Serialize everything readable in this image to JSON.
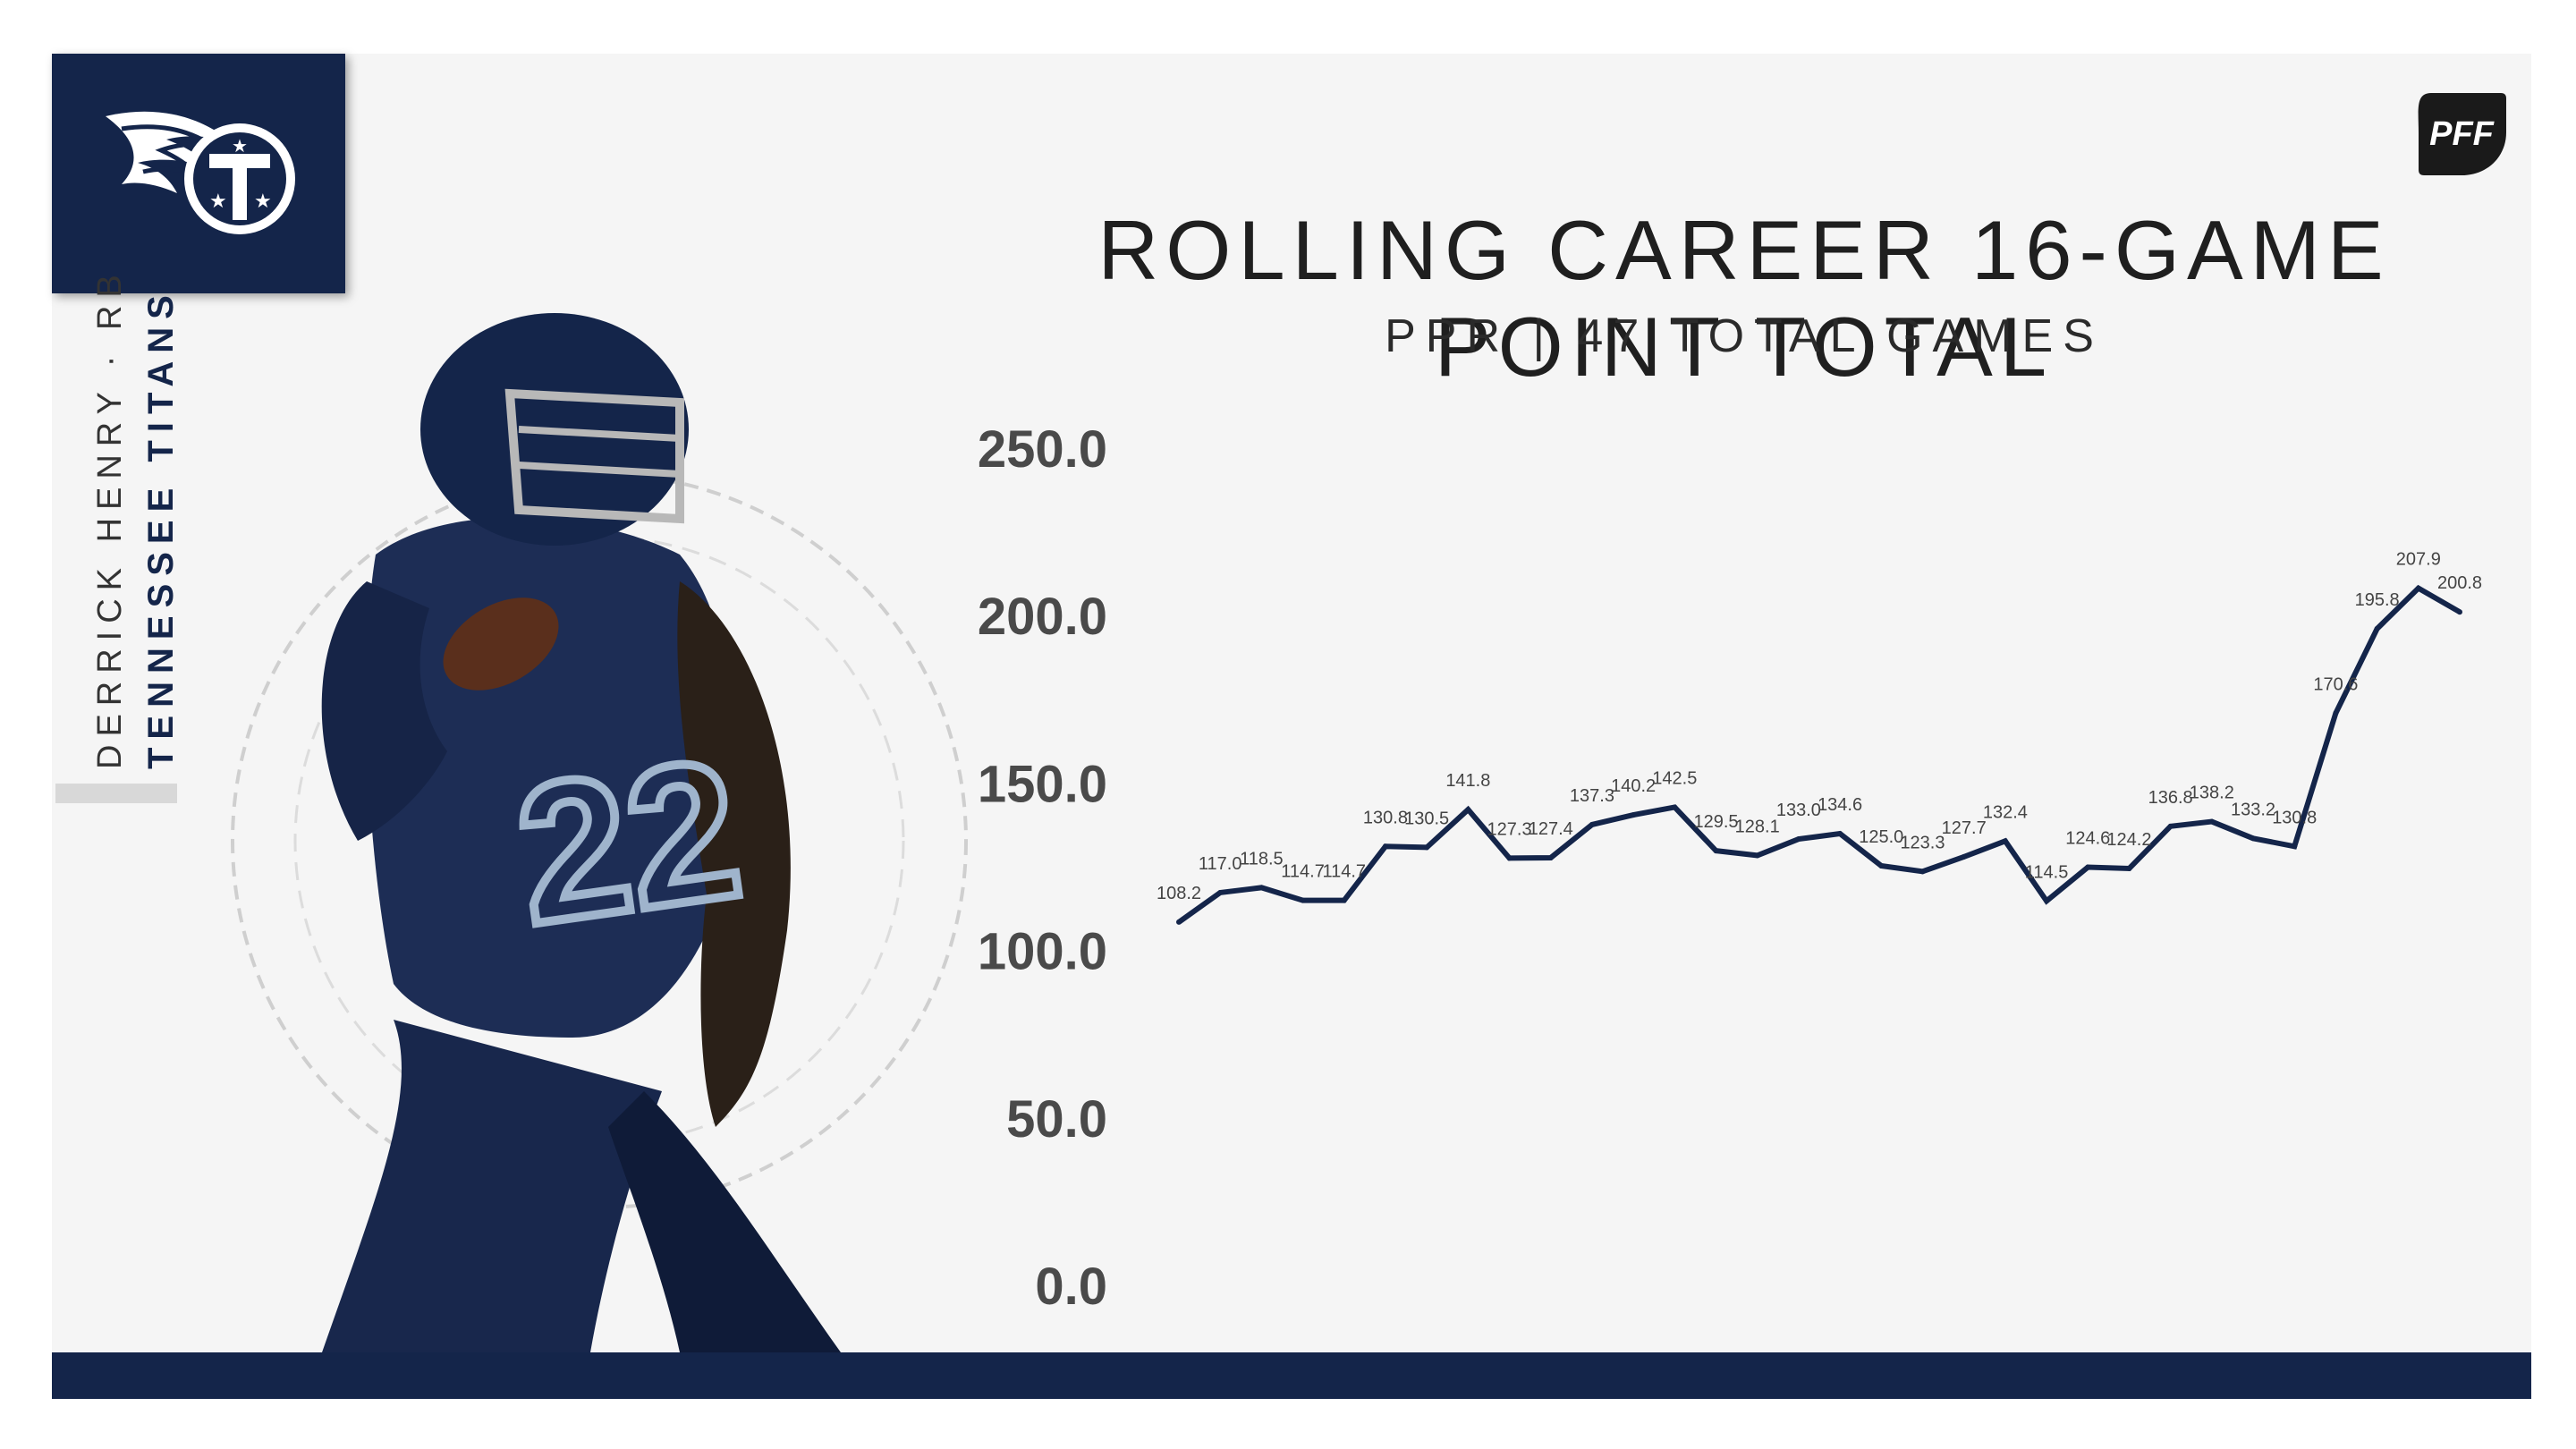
{
  "player": {
    "name_position": "DERRICK HENRY · RB",
    "team": "TENNESSEE TITANS"
  },
  "brand": {
    "team_color": "#14254a",
    "background": "#f5f5f5",
    "pff_logo_text": "PFF",
    "team_logo_icon": "titans-logo-icon",
    "player_photo": "player-photo"
  },
  "chart_data": {
    "type": "line",
    "title": "ROLLING CAREER 16-GAME POINT TOTAL",
    "subtitle": "PPR | 47 TOTAL GAMES",
    "xlabel": "",
    "ylabel": "",
    "ylim": [
      0,
      250
    ],
    "yticks": [
      "250.0",
      "200.0",
      "150.0",
      "100.0",
      "50.0",
      "0.0"
    ],
    "grid": false,
    "line_color": "#14254a",
    "x": [
      1,
      2,
      3,
      4,
      5,
      6,
      7,
      8,
      9,
      10,
      11,
      12,
      13,
      14,
      15,
      16,
      17,
      18,
      19,
      20,
      21,
      22,
      23,
      24,
      25,
      26,
      27,
      28,
      29,
      30,
      31,
      32
    ],
    "values": [
      108.2,
      117.0,
      118.5,
      114.7,
      114.7,
      130.8,
      130.5,
      141.8,
      127.3,
      127.4,
      137.3,
      140.2,
      142.5,
      129.5,
      128.1,
      133.0,
      134.6,
      125.0,
      123.3,
      127.7,
      132.4,
      114.5,
      124.6,
      124.2,
      136.8,
      138.2,
      133.2,
      130.8,
      170.6,
      195.8,
      207.9,
      200.8
    ],
    "data_labels": [
      "108.2",
      "117.0",
      "118.5",
      "114.7",
      "114.7",
      "130.8",
      "130.5",
      "141.8",
      "127.3",
      "127.4",
      "137.3",
      "140.2",
      "142.5",
      "129.5",
      "128.1",
      "133.0",
      "134.6",
      "125.0",
      "123.3",
      "127.7",
      "132.4",
      "114.5",
      "124.6",
      "124.2",
      "136.8",
      "138.2",
      "133.2",
      "130.8",
      "170.6",
      "195.8",
      "207.9",
      "200.8"
    ]
  }
}
